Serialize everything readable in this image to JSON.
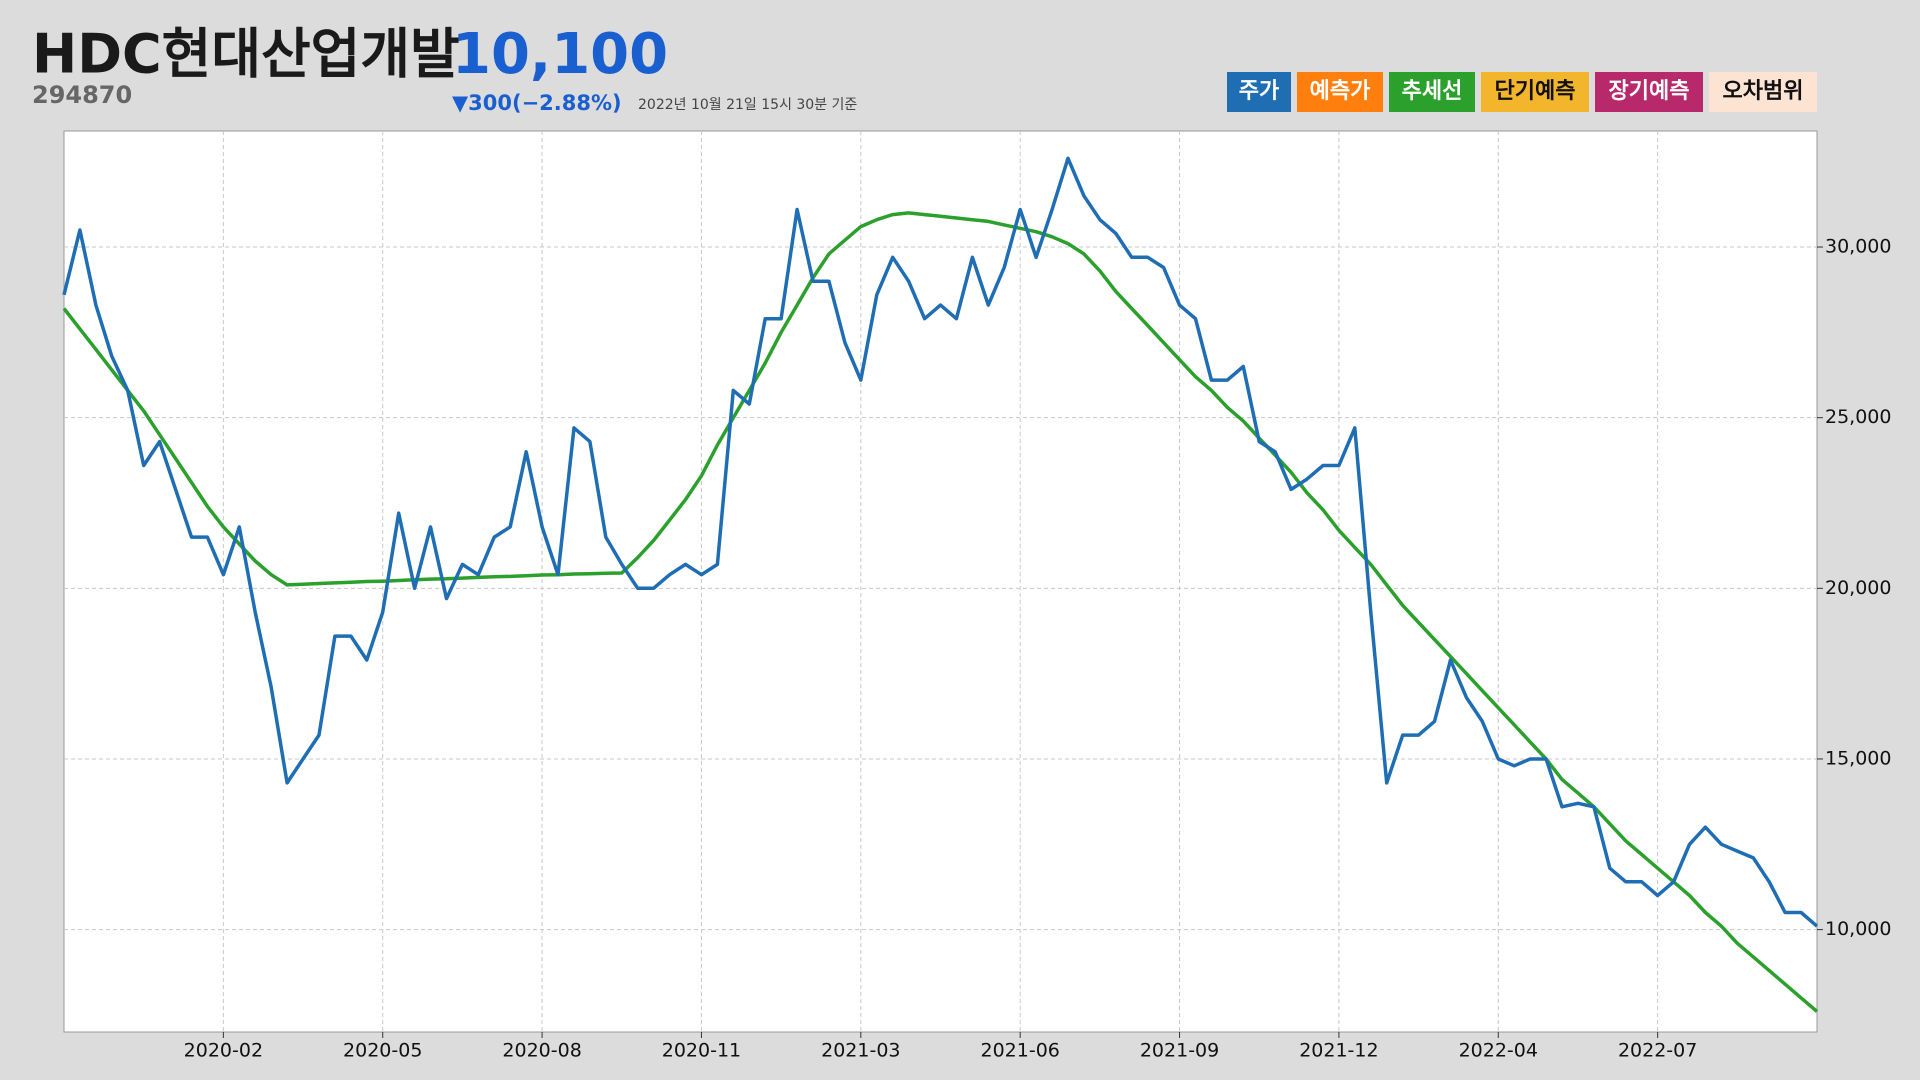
{
  "chart_data": {
    "type": "line",
    "title": "HDC현대산업개발",
    "price": "10,100",
    "code": "294870",
    "change": "▼300(−2.88%)",
    "timestamp": "2022년 10월 21일 15시 30분 기준",
    "legend": [
      {
        "name": "주가",
        "color": "#1f6eb4"
      },
      {
        "name": "예측가",
        "color": "#ff7f0e"
      },
      {
        "name": "추세선",
        "color": "#2ca02c"
      },
      {
        "name": "단기예측",
        "color": "#f2b52c"
      },
      {
        "name": "장기예측",
        "color": "#b8296b"
      },
      {
        "name": "오차범위",
        "color": "#fde3d2"
      }
    ],
    "x": [
      null,
      null,
      null,
      null,
      null,
      null,
      null,
      null,
      null,
      null,
      "2020-02",
      null,
      null,
      null,
      null,
      null,
      null,
      null,
      null,
      null,
      "2020-05",
      null,
      null,
      null,
      null,
      null,
      null,
      null,
      null,
      null,
      "2020-08",
      null,
      null,
      null,
      null,
      null,
      null,
      null,
      null,
      null,
      "2020-11",
      null,
      null,
      null,
      null,
      null,
      null,
      null,
      null,
      null,
      "2021-03",
      null,
      null,
      null,
      null,
      null,
      null,
      null,
      null,
      null,
      "2021-06",
      null,
      null,
      null,
      null,
      null,
      null,
      null,
      null,
      null,
      "2021-09",
      null,
      null,
      null,
      null,
      null,
      null,
      null,
      null,
      null,
      "2021-12",
      null,
      null,
      null,
      null,
      null,
      null,
      null,
      null,
      null,
      "2022-04",
      null,
      null,
      null,
      null,
      null,
      null,
      null,
      null,
      null,
      "2022-07",
      null,
      null,
      null,
      null,
      null,
      null,
      null,
      null,
      null,
      null
    ],
    "series": [
      {
        "name": "주가",
        "color": "#1f6eb4",
        "values": [
          28600,
          30500,
          28300,
          26800,
          25800,
          23600,
          24300,
          22900,
          21500,
          21500,
          20400,
          21800,
          19300,
          17100,
          14300,
          15000,
          15700,
          18600,
          18600,
          17900,
          19300,
          22200,
          20000,
          21800,
          19700,
          20700,
          20400,
          21500,
          21800,
          24000,
          21800,
          20400,
          24700,
          24300,
          21500,
          20700,
          20000,
          20000,
          20400,
          20700,
          20400,
          20700,
          25800,
          25400,
          27900,
          27900,
          31100,
          29000,
          29000,
          27200,
          26100,
          28600,
          29700,
          29000,
          27900,
          28300,
          27900,
          29700,
          28300,
          29400,
          31100,
          29700,
          31100,
          32600,
          31500,
          30800,
          30400,
          29700,
          29700,
          29400,
          28300,
          27900,
          26100,
          26100,
          26500,
          24300,
          24000,
          22900,
          23200,
          23600,
          23600,
          24700,
          19300,
          14300,
          15700,
          15700,
          16100,
          17900,
          16800,
          16100,
          15000,
          14800,
          15000,
          15000,
          13600,
          13700,
          13600,
          11800,
          11400,
          11400,
          11000,
          11400,
          12500,
          13000,
          12500,
          12300,
          12100,
          11400,
          10500,
          10500,
          10100
        ]
      },
      {
        "name": "추세선",
        "color": "#2ca02c",
        "values": [
          28200,
          27600,
          27000,
          26400,
          25800,
          25200,
          24500,
          23800,
          23100,
          22400,
          21800,
          21300,
          20800,
          20400,
          20100,
          20120,
          20140,
          20160,
          20180,
          20200,
          20210,
          20230,
          20250,
          20270,
          20280,
          20300,
          20320,
          20340,
          20350,
          20370,
          20390,
          20400,
          20420,
          20430,
          20440,
          20450,
          20900,
          21400,
          22000,
          22600,
          23300,
          24200,
          25000,
          25800,
          26600,
          27500,
          28300,
          29100,
          29800,
          30200,
          30600,
          30800,
          30950,
          31000,
          30950,
          30900,
          30850,
          30800,
          30750,
          30650,
          30550,
          30450,
          30300,
          30100,
          29800,
          29300,
          28700,
          28200,
          27700,
          27200,
          26700,
          26200,
          25800,
          25300,
          24900,
          24400,
          23900,
          23400,
          22800,
          22300,
          21700,
          21200,
          20700,
          20100,
          19500,
          19000,
          18500,
          18000,
          17500,
          17000,
          16500,
          16000,
          15500,
          15000,
          14400,
          14000,
          13600,
          13100,
          12600,
          12200,
          11800,
          11400,
          11000,
          10500,
          10100,
          9600,
          9200,
          8800,
          8400,
          8000,
          7600
        ]
      }
    ],
    "ylim": [
      7000,
      33400
    ],
    "yticks": [
      {
        "value": 10000,
        "label": "10,000"
      },
      {
        "value": 15000,
        "label": "15,000"
      },
      {
        "value": 20000,
        "label": "20,000"
      },
      {
        "value": 25000,
        "label": "25,000"
      },
      {
        "value": 30000,
        "label": "30,000"
      }
    ],
    "grid": true
  }
}
